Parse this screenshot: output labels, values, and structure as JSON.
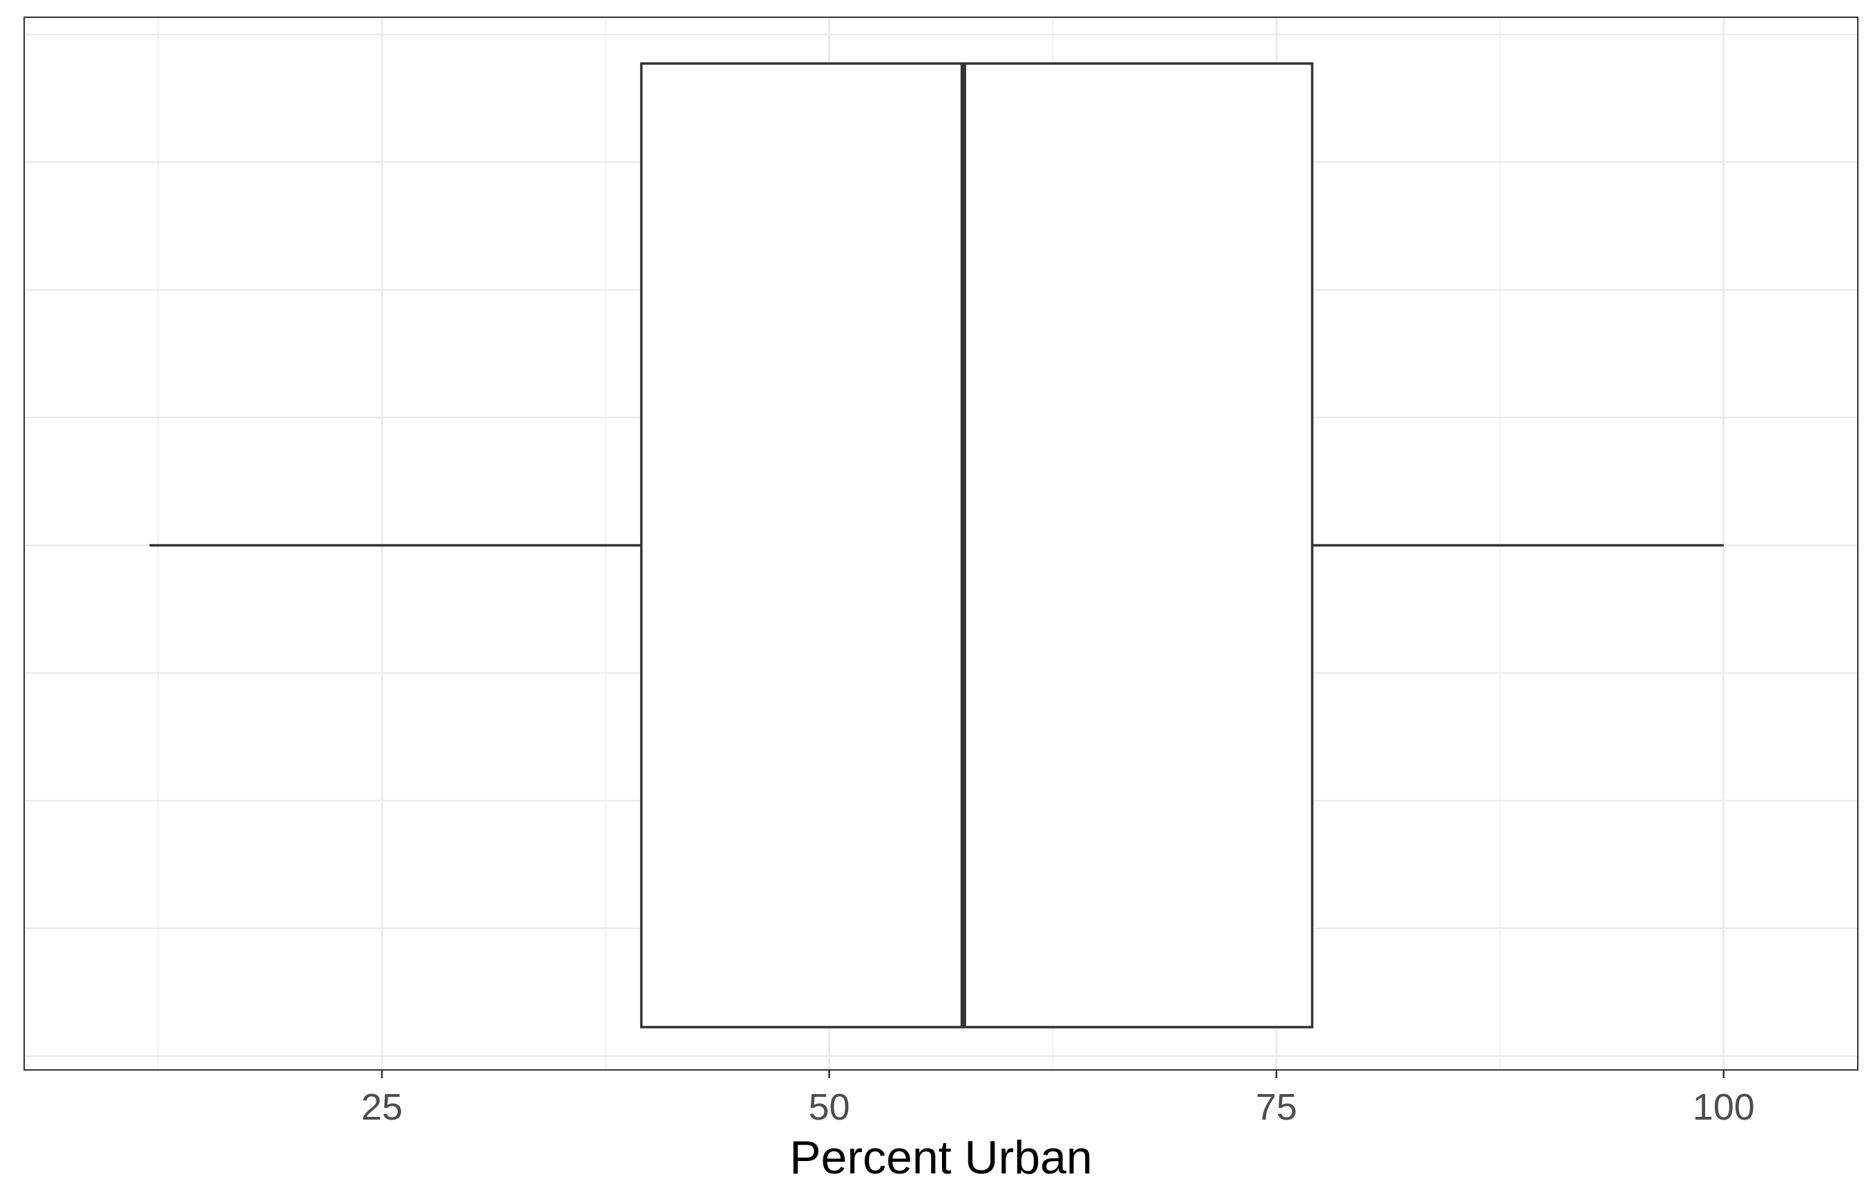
{
  "chart_data": {
    "type": "boxplot",
    "orientation": "horizontal",
    "xlabel": "Percent Urban",
    "xlim": [
      5,
      107.5
    ],
    "xticks": [
      25,
      50,
      75,
      100
    ],
    "xtick_labels": [
      "25",
      "50",
      "75",
      "100"
    ],
    "grid": true,
    "series": [
      {
        "min": 12,
        "q1": 39.5,
        "median": 57.5,
        "q3": 77,
        "max": 100
      }
    ],
    "colors": {
      "box_fill": "#ffffff",
      "box_stroke": "#333333",
      "grid_major": "#ebebeb",
      "grid_minor": "#f2f2f2",
      "panel_border": "#333333",
      "tick_label": "#4d4d4d"
    }
  }
}
